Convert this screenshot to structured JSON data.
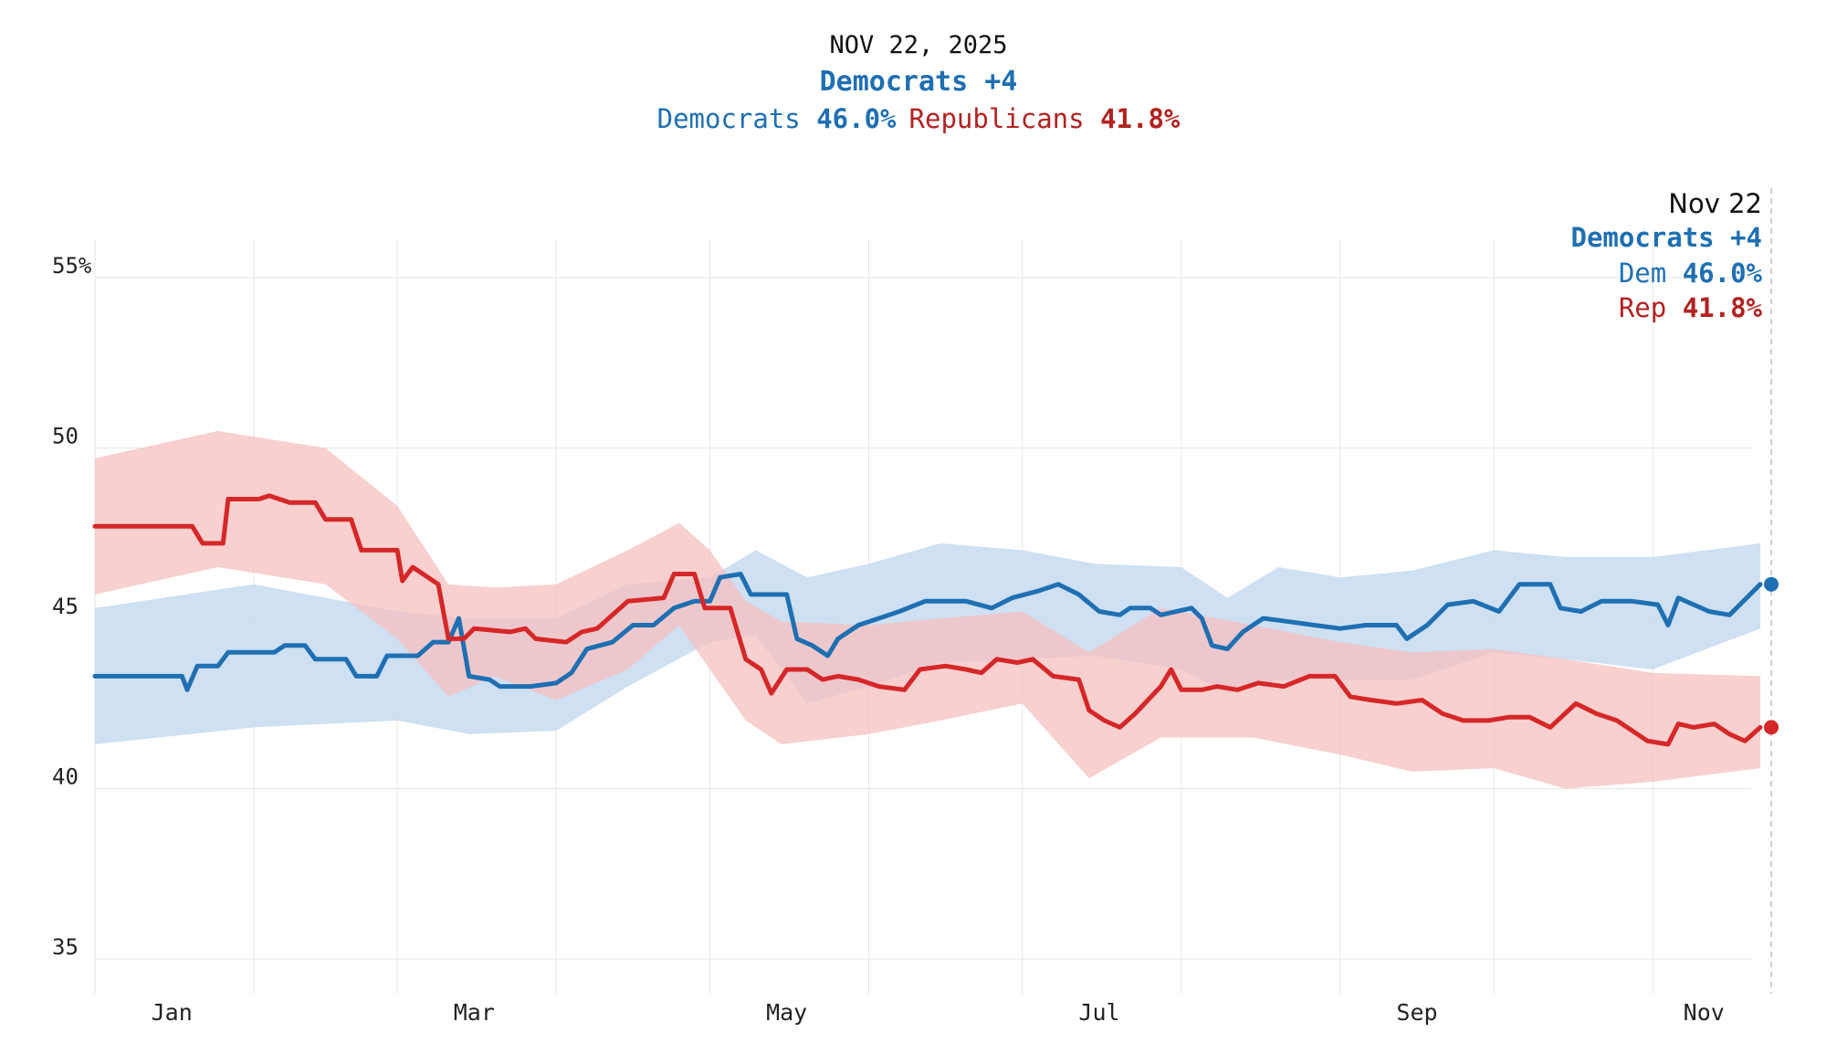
{
  "header": {
    "date": "NOV 22, 2025",
    "lead_label": "Democrats +4",
    "dem_label": "Democrats",
    "dem_value": "46.0%",
    "rep_label": "Republicans",
    "rep_value": "41.8%"
  },
  "tooltip": {
    "date": "Nov 22",
    "lead_label": "Democrats +4",
    "dem_label": "Dem",
    "dem_value": "46.0%",
    "rep_label": "Rep",
    "rep_value": "41.8%"
  },
  "colors": {
    "dem": "#1f6fb2",
    "dem_band": "#c6dbee",
    "rep": "#d62728",
    "rep_band": "#f5c0c0",
    "grid": "#e6e6e6",
    "hover_line": "#bbbbbb"
  },
  "chart_data": {
    "type": "line",
    "x_unit": "date",
    "y_ticks": [
      35,
      40,
      45,
      50,
      55
    ],
    "y_tick_labels": [
      "35",
      "40",
      "45",
      "50",
      "55%"
    ],
    "ylim": [
      34.5,
      55.5
    ],
    "x_ticks": [
      "Jan",
      "Mar",
      "May",
      "Jul",
      "Sep",
      "Nov"
    ],
    "grid": true,
    "legend": "none",
    "hover_date": "Nov 22",
    "series": [
      {
        "name": "Democrats",
        "points": [
          [
            "Jan 1",
            43.3
          ],
          [
            "Jan 18",
            43.3
          ],
          [
            "Jan 19",
            42.9
          ],
          [
            "Jan 21",
            43.6
          ],
          [
            "Jan 25",
            43.6
          ],
          [
            "Jan 27",
            44.0
          ],
          [
            "Feb 5",
            44.0
          ],
          [
            "Feb 7",
            44.2
          ],
          [
            "Feb 11",
            44.2
          ],
          [
            "Feb 13",
            43.8
          ],
          [
            "Feb 19",
            43.8
          ],
          [
            "Feb 21",
            43.3
          ],
          [
            "Feb 25",
            43.3
          ],
          [
            "Feb 27",
            43.9
          ],
          [
            "Mar 5",
            43.9
          ],
          [
            "Mar 8",
            44.3
          ],
          [
            "Mar 11",
            44.3
          ],
          [
            "Mar 13",
            45.0
          ],
          [
            "Mar 15",
            43.3
          ],
          [
            "Mar 19",
            43.2
          ],
          [
            "Mar 21",
            43.0
          ],
          [
            "Mar 27",
            43.0
          ],
          [
            "Apr 1",
            43.1
          ],
          [
            "Apr 4",
            43.4
          ],
          [
            "Apr 7",
            44.1
          ],
          [
            "Apr 12",
            44.3
          ],
          [
            "Apr 16",
            44.8
          ],
          [
            "Apr 20",
            44.8
          ],
          [
            "Apr 24",
            45.3
          ],
          [
            "Apr 28",
            45.5
          ],
          [
            "May 1",
            45.5
          ],
          [
            "May 3",
            46.2
          ],
          [
            "May 7",
            46.3
          ],
          [
            "May 9",
            45.7
          ],
          [
            "May 16",
            45.7
          ],
          [
            "May 18",
            44.4
          ],
          [
            "May 21",
            44.2
          ],
          [
            "May 24",
            43.9
          ],
          [
            "May 26",
            44.4
          ],
          [
            "May 30",
            44.8
          ],
          [
            "Jun 3",
            45.0
          ],
          [
            "Jun 7",
            45.2
          ],
          [
            "Jun 12",
            45.5
          ],
          [
            "Jun 20",
            45.5
          ],
          [
            "Jun 25",
            45.3
          ],
          [
            "Jun 29",
            45.6
          ],
          [
            "Jul 4",
            45.8
          ],
          [
            "Jul 8",
            46.0
          ],
          [
            "Jul 12",
            45.7
          ],
          [
            "Jul 16",
            45.2
          ],
          [
            "Jul 20",
            45.1
          ],
          [
            "Jul 22",
            45.3
          ],
          [
            "Jul 26",
            45.3
          ],
          [
            "Jul 28",
            45.1
          ],
          [
            "Aug 3",
            45.3
          ],
          [
            "Aug 5",
            45.0
          ],
          [
            "Aug 7",
            44.2
          ],
          [
            "Aug 10",
            44.1
          ],
          [
            "Aug 13",
            44.6
          ],
          [
            "Aug 17",
            45.0
          ],
          [
            "Aug 22",
            44.9
          ],
          [
            "Aug 27",
            44.8
          ],
          [
            "Sep 1",
            44.7
          ],
          [
            "Sep 6",
            44.8
          ],
          [
            "Sep 12",
            44.8
          ],
          [
            "Sep 14",
            44.4
          ],
          [
            "Sep 18",
            44.8
          ],
          [
            "Sep 22",
            45.4
          ],
          [
            "Sep 27",
            45.5
          ],
          [
            "Oct 2",
            45.2
          ],
          [
            "Oct 6",
            46.0
          ],
          [
            "Oct 12",
            46.0
          ],
          [
            "Oct 14",
            45.3
          ],
          [
            "Oct 18",
            45.2
          ],
          [
            "Oct 22",
            45.5
          ],
          [
            "Oct 28",
            45.5
          ],
          [
            "Nov 2",
            45.4
          ],
          [
            "Nov 4",
            44.8
          ],
          [
            "Nov 6",
            45.6
          ],
          [
            "Nov 12",
            45.2
          ],
          [
            "Nov 16",
            45.1
          ],
          [
            "Nov 22",
            46.0
          ]
        ],
        "band_upper": [
          [
            "Jan 1",
            45.3
          ],
          [
            "Feb 1",
            46.0
          ],
          [
            "Mar 1",
            45.2
          ],
          [
            "Mar 15",
            45.0
          ],
          [
            "Apr 1",
            45.0
          ],
          [
            "Apr 15",
            46.0
          ],
          [
            "May 1",
            46.2
          ],
          [
            "May 10",
            47.0
          ],
          [
            "May 20",
            46.2
          ],
          [
            "Jun 1",
            46.6
          ],
          [
            "Jun 15",
            47.2
          ],
          [
            "Jul 1",
            47.0
          ],
          [
            "Jul 15",
            46.6
          ],
          [
            "Aug 1",
            46.5
          ],
          [
            "Aug 10",
            45.6
          ],
          [
            "Aug 20",
            46.5
          ],
          [
            "Sep 1",
            46.2
          ],
          [
            "Sep 15",
            46.4
          ],
          [
            "Oct 1",
            47.0
          ],
          [
            "Oct 15",
            46.8
          ],
          [
            "Nov 1",
            46.8
          ],
          [
            "Nov 22",
            47.2
          ]
        ],
        "band_lower": [
          [
            "Jan 1",
            41.3
          ],
          [
            "Feb 1",
            41.8
          ],
          [
            "Mar 1",
            42.0
          ],
          [
            "Mar 15",
            41.6
          ],
          [
            "Apr 1",
            41.7
          ],
          [
            "Apr 15",
            43.0
          ],
          [
            "May 1",
            44.3
          ],
          [
            "May 10",
            44.5
          ],
          [
            "May 20",
            42.5
          ],
          [
            "Jun 1",
            43.0
          ],
          [
            "Jun 15",
            43.7
          ],
          [
            "Jul 1",
            43.8
          ],
          [
            "Jul 15",
            43.9
          ],
          [
            "Aug 1",
            43.5
          ],
          [
            "Aug 10",
            42.8
          ],
          [
            "Aug 20",
            43.2
          ],
          [
            "Sep 1",
            43.2
          ],
          [
            "Sep 15",
            43.2
          ],
          [
            "Oct 1",
            44.0
          ],
          [
            "Oct 15",
            43.8
          ],
          [
            "Nov 1",
            43.5
          ],
          [
            "Nov 22",
            44.7
          ]
        ]
      },
      {
        "name": "Republicans",
        "points": [
          [
            "Jan 1",
            47.7
          ],
          [
            "Jan 20",
            47.7
          ],
          [
            "Jan 22",
            47.2
          ],
          [
            "Jan 26",
            47.2
          ],
          [
            "Jan 27",
            48.5
          ],
          [
            "Feb 2",
            48.5
          ],
          [
            "Feb 4",
            48.6
          ],
          [
            "Feb 8",
            48.4
          ],
          [
            "Feb 13",
            48.4
          ],
          [
            "Feb 15",
            47.9
          ],
          [
            "Feb 20",
            47.9
          ],
          [
            "Feb 22",
            47.0
          ],
          [
            "Mar 1",
            47.0
          ],
          [
            "Mar 2",
            46.1
          ],
          [
            "Mar 4",
            46.5
          ],
          [
            "Mar 7",
            46.2
          ],
          [
            "Mar 9",
            46.0
          ],
          [
            "Mar 11",
            44.4
          ],
          [
            "Mar 14",
            44.4
          ],
          [
            "Mar 16",
            44.7
          ],
          [
            "Mar 23",
            44.6
          ],
          [
            "Mar 26",
            44.7
          ],
          [
            "Mar 28",
            44.4
          ],
          [
            "Apr 3",
            44.3
          ],
          [
            "Apr 6",
            44.6
          ],
          [
            "Apr 9",
            44.7
          ],
          [
            "Apr 15",
            45.5
          ],
          [
            "Apr 22",
            45.6
          ],
          [
            "Apr 24",
            46.3
          ],
          [
            "Apr 28",
            46.3
          ],
          [
            "Apr 30",
            45.3
          ],
          [
            "May 5",
            45.3
          ],
          [
            "May 8",
            43.8
          ],
          [
            "May 11",
            43.5
          ],
          [
            "May 13",
            42.8
          ],
          [
            "May 16",
            43.5
          ],
          [
            "May 20",
            43.5
          ],
          [
            "May 23",
            43.2
          ],
          [
            "May 26",
            43.3
          ],
          [
            "May 30",
            43.2
          ],
          [
            "Jun 3",
            43.0
          ],
          [
            "Jun 8",
            42.9
          ],
          [
            "Jun 11",
            43.5
          ],
          [
            "Jun 16",
            43.6
          ],
          [
            "Jun 20",
            43.5
          ],
          [
            "Jun 23",
            43.4
          ],
          [
            "Jun 26",
            43.8
          ],
          [
            "Jun 30",
            43.7
          ],
          [
            "Jul 3",
            43.8
          ],
          [
            "Jul 7",
            43.3
          ],
          [
            "Jul 12",
            43.2
          ],
          [
            "Jul 14",
            42.3
          ],
          [
            "Jul 17",
            42.0
          ],
          [
            "Jul 20",
            41.8
          ],
          [
            "Jul 23",
            42.2
          ],
          [
            "Jul 28",
            43.0
          ],
          [
            "Jul 30",
            43.5
          ],
          [
            "Aug 1",
            42.9
          ],
          [
            "Aug 5",
            42.9
          ],
          [
            "Aug 8",
            43.0
          ],
          [
            "Aug 12",
            42.9
          ],
          [
            "Aug 16",
            43.1
          ],
          [
            "Aug 21",
            43.0
          ],
          [
            "Aug 26",
            43.3
          ],
          [
            "Aug 31",
            43.3
          ],
          [
            "Sep 3",
            42.7
          ],
          [
            "Sep 7",
            42.6
          ],
          [
            "Sep 12",
            42.5
          ],
          [
            "Sep 17",
            42.6
          ],
          [
            "Sep 21",
            42.2
          ],
          [
            "Sep 25",
            42.0
          ],
          [
            "Sep 30",
            42.0
          ],
          [
            "Oct 4",
            42.1
          ],
          [
            "Oct 8",
            42.1
          ],
          [
            "Oct 12",
            41.8
          ],
          [
            "Oct 17",
            42.5
          ],
          [
            "Oct 21",
            42.2
          ],
          [
            "Oct 25",
            42.0
          ],
          [
            "Oct 28",
            41.7
          ],
          [
            "Oct 31",
            41.4
          ],
          [
            "Nov 4",
            41.3
          ],
          [
            "Nov 6",
            41.9
          ],
          [
            "Nov 9",
            41.8
          ],
          [
            "Nov 13",
            41.9
          ],
          [
            "Nov 16",
            41.6
          ],
          [
            "Nov 19",
            41.4
          ],
          [
            "Nov 22",
            41.8
          ]
        ],
        "band_upper": [
          [
            "Jan 1",
            49.7
          ],
          [
            "Jan 25",
            50.5
          ],
          [
            "Feb 15",
            50.0
          ],
          [
            "Mar 1",
            48.3
          ],
          [
            "Mar 11",
            46.0
          ],
          [
            "Mar 20",
            45.9
          ],
          [
            "Apr 1",
            46.0
          ],
          [
            "Apr 15",
            47.0
          ],
          [
            "Apr 25",
            47.8
          ],
          [
            "May 1",
            47.0
          ],
          [
            "May 8",
            45.5
          ],
          [
            "May 15",
            44.9
          ],
          [
            "Jun 1",
            44.8
          ],
          [
            "Jun 15",
            45.0
          ],
          [
            "Jul 1",
            45.2
          ],
          [
            "Jul 14",
            44.0
          ],
          [
            "Jul 28",
            45.3
          ],
          [
            "Aug 15",
            44.8
          ],
          [
            "Sep 1",
            44.3
          ],
          [
            "Sep 15",
            44.0
          ],
          [
            "Oct 1",
            44.1
          ],
          [
            "Oct 15",
            43.8
          ],
          [
            "Nov 1",
            43.4
          ],
          [
            "Nov 22",
            43.3
          ]
        ],
        "band_lower": [
          [
            "Jan 1",
            45.7
          ],
          [
            "Jan 25",
            46.5
          ],
          [
            "Feb 15",
            46.0
          ],
          [
            "Mar 1",
            44.4
          ],
          [
            "Mar 11",
            42.7
          ],
          [
            "Mar 20",
            43.3
          ],
          [
            "Apr 1",
            42.6
          ],
          [
            "Apr 15",
            43.5
          ],
          [
            "Apr 25",
            44.8
          ],
          [
            "May 1",
            43.5
          ],
          [
            "May 8",
            42.0
          ],
          [
            "May 15",
            41.3
          ],
          [
            "Jun 1",
            41.6
          ],
          [
            "Jun 15",
            42.0
          ],
          [
            "Jul 1",
            42.5
          ],
          [
            "Jul 14",
            40.3
          ],
          [
            "Jul 28",
            41.5
          ],
          [
            "Aug 15",
            41.5
          ],
          [
            "Sep 1",
            41.0
          ],
          [
            "Sep 15",
            40.5
          ],
          [
            "Oct 1",
            40.6
          ],
          [
            "Oct 15",
            40.0
          ],
          [
            "Nov 1",
            40.2
          ],
          [
            "Nov 22",
            40.6
          ]
        ]
      }
    ]
  }
}
